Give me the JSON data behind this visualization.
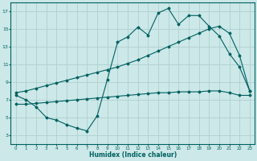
{
  "xlabel": "Humidex (Indice chaleur)",
  "bg_color": "#cce8e8",
  "grid_color": "#b0d0d0",
  "line_color": "#006060",
  "xlim": [
    -0.5,
    23.5
  ],
  "ylim": [
    2.0,
    18.0
  ],
  "yticks": [
    3,
    5,
    7,
    9,
    11,
    13,
    15,
    17
  ],
  "xticks": [
    0,
    1,
    2,
    3,
    4,
    5,
    6,
    7,
    8,
    9,
    10,
    11,
    12,
    13,
    14,
    15,
    16,
    17,
    18,
    19,
    20,
    21,
    22,
    23
  ],
  "curve1_x": [
    0,
    1,
    2,
    3,
    4,
    5,
    6,
    7,
    8,
    9,
    10,
    11,
    12,
    13,
    14,
    15,
    16,
    17,
    18,
    19,
    20,
    21,
    22,
    23
  ],
  "curve1_y": [
    7.5,
    7.0,
    6.2,
    5.0,
    4.7,
    4.2,
    3.8,
    3.5,
    5.2,
    9.3,
    13.5,
    14.1,
    15.2,
    14.3,
    16.8,
    17.3,
    15.5,
    16.5,
    16.5,
    15.3,
    14.2,
    12.2,
    10.7,
    8.0
  ],
  "curve2_x": [
    0,
    1,
    2,
    3,
    4,
    5,
    6,
    7,
    8,
    9,
    10,
    11,
    12,
    13,
    14,
    15,
    16,
    17,
    18,
    19,
    20,
    21,
    22,
    23
  ],
  "curve2_y": [
    7.8,
    8.0,
    8.3,
    8.6,
    8.9,
    9.2,
    9.5,
    9.8,
    10.1,
    10.4,
    10.7,
    11.1,
    11.5,
    12.0,
    12.5,
    13.0,
    13.5,
    14.0,
    14.5,
    15.0,
    15.3,
    14.5,
    12.0,
    8.0
  ],
  "curve3_x": [
    0,
    1,
    2,
    3,
    4,
    5,
    6,
    7,
    8,
    9,
    10,
    11,
    12,
    13,
    14,
    15,
    16,
    17,
    18,
    19,
    20,
    21,
    22,
    23
  ],
  "curve3_y": [
    6.5,
    6.5,
    6.6,
    6.7,
    6.8,
    6.9,
    7.0,
    7.1,
    7.2,
    7.3,
    7.4,
    7.5,
    7.6,
    7.7,
    7.8,
    7.8,
    7.9,
    7.9,
    7.9,
    8.0,
    8.0,
    7.8,
    7.5,
    7.5
  ]
}
